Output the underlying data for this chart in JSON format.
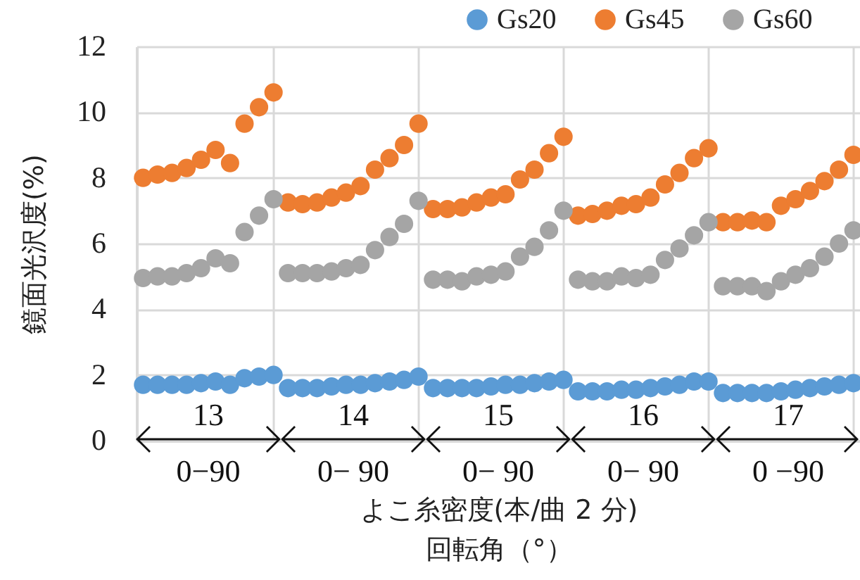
{
  "chart_data": {
    "type": "scatter",
    "xlabel": "よこ糸密度(本/曲 2 分)\n回転角（°）",
    "ylabel": "鏡面光沢度(%)",
    "categories": [
      null,
      null,
      null,
      null,
      null,
      null,
      null,
      null,
      null,
      null,
      null,
      null,
      null,
      null,
      null,
      null,
      null,
      null,
      null,
      null,
      null,
      null,
      null,
      null,
      null,
      null,
      null,
      null,
      null,
      null,
      null,
      null,
      null,
      null,
      null,
      null,
      null,
      null,
      null,
      null,
      null,
      null,
      null,
      null,
      null,
      null,
      null,
      null,
      null,
      null
    ],
    "ylim": [
      0,
      12
    ],
    "yticks": [
      0,
      2,
      4,
      6,
      8,
      10,
      12
    ],
    "series": [
      {
        "name": "Gs20",
        "color": "#5b9bd5",
        "values": [
          1.7,
          1.7,
          1.7,
          1.7,
          1.75,
          1.8,
          1.7,
          1.9,
          1.95,
          2.0,
          1.6,
          1.6,
          1.6,
          1.65,
          1.7,
          1.7,
          1.75,
          1.8,
          1.85,
          1.95,
          1.6,
          1.6,
          1.6,
          1.6,
          1.65,
          1.7,
          1.7,
          1.75,
          1.8,
          1.85,
          1.5,
          1.5,
          1.5,
          1.55,
          1.55,
          1.6,
          1.65,
          1.7,
          1.8,
          1.8,
          1.45,
          1.45,
          1.45,
          1.45,
          1.5,
          1.55,
          1.6,
          1.65,
          1.7,
          1.75
        ]
      },
      {
        "name": "Gs45",
        "color": "#ed7d31",
        "values": [
          8.0,
          8.1,
          8.15,
          8.3,
          8.55,
          8.85,
          8.45,
          9.65,
          10.15,
          10.6,
          7.25,
          7.2,
          7.25,
          7.4,
          7.55,
          7.75,
          8.25,
          8.6,
          9.0,
          9.65,
          7.05,
          7.05,
          7.1,
          7.25,
          7.4,
          7.5,
          7.95,
          8.25,
          8.75,
          9.25,
          6.85,
          6.9,
          7.0,
          7.15,
          7.2,
          7.4,
          7.8,
          8.15,
          8.6,
          8.9,
          6.65,
          6.65,
          6.7,
          6.65,
          7.15,
          7.35,
          7.6,
          7.9,
          8.25,
          8.7
        ]
      },
      {
        "name": "Gs60",
        "color": "#a5a5a5",
        "values": [
          4.95,
          5.0,
          5.0,
          5.1,
          5.25,
          5.55,
          5.4,
          6.35,
          6.85,
          7.35,
          5.1,
          5.1,
          5.1,
          5.15,
          5.25,
          5.35,
          5.8,
          6.2,
          6.6,
          7.3,
          4.9,
          4.9,
          4.85,
          5.0,
          5.05,
          5.15,
          5.6,
          5.9,
          6.4,
          7.0,
          4.9,
          4.85,
          4.85,
          5.0,
          4.95,
          5.05,
          5.5,
          5.85,
          6.25,
          6.65,
          4.7,
          4.7,
          4.7,
          4.55,
          4.85,
          5.05,
          5.25,
          5.6,
          6.0,
          6.4
        ]
      }
    ],
    "annotations": [
      "13",
      "0−90",
      "14",
      "0− 90",
      "15",
      "0− 90",
      "16",
      "0− 90",
      "17",
      "0 −90"
    ],
    "grid": true,
    "legend": "top right",
    "marker": "circle",
    "tick_labels": "y"
  }
}
